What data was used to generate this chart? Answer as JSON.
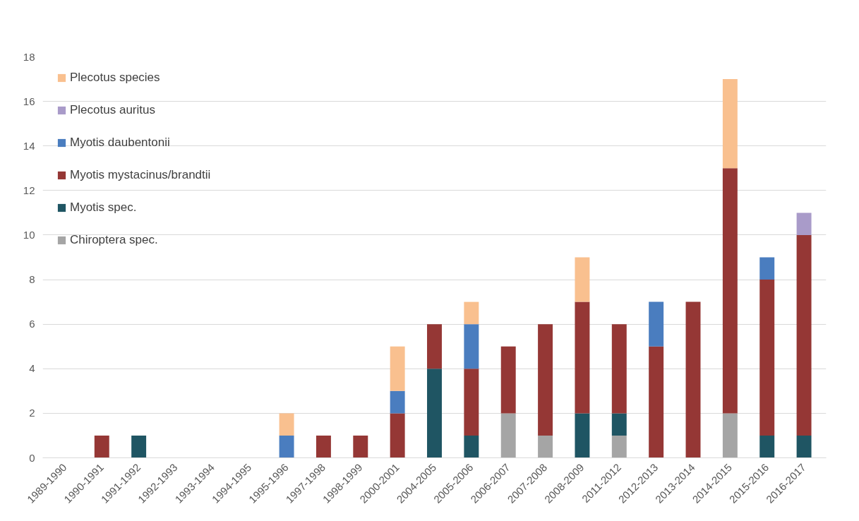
{
  "chart_data": {
    "type": "bar",
    "stacked": true,
    "categories": [
      "1989-1990",
      "1990-1991",
      "1991-1992",
      "1992-1993",
      "1993-1994",
      "1994-1995",
      "1995-1996",
      "1997-1998",
      "1998-1999",
      "2000-2001",
      "2004-2005",
      "2005-2006",
      "2006-2007",
      "2007-2008",
      "2008-2009",
      "2011-2012",
      "2012-2013",
      "2013-2014",
      "2014-2015",
      "2015-2016",
      "2016-2017"
    ],
    "series": [
      {
        "name": "Chiroptera spec.",
        "color": "#a5a5a5",
        "values": [
          null,
          null,
          null,
          null,
          null,
          null,
          null,
          null,
          null,
          null,
          null,
          null,
          2,
          1,
          null,
          1,
          null,
          null,
          2,
          null,
          null
        ]
      },
      {
        "name": "Myotis spec.",
        "color": "#1f5563",
        "values": [
          null,
          null,
          1,
          null,
          null,
          null,
          null,
          null,
          null,
          null,
          4,
          1,
          null,
          null,
          2,
          1,
          null,
          null,
          null,
          1,
          1
        ]
      },
      {
        "name": "Myotis mystacinus/brandtii",
        "color": "#953735",
        "values": [
          null,
          1,
          null,
          null,
          null,
          null,
          null,
          1,
          1,
          2,
          2,
          3,
          3,
          5,
          5,
          4,
          5,
          7,
          11,
          7,
          9
        ]
      },
      {
        "name": "Myotis daubentonii",
        "color": "#4a7dbf",
        "values": [
          null,
          null,
          null,
          null,
          null,
          null,
          1,
          null,
          null,
          1,
          null,
          2,
          null,
          null,
          null,
          null,
          2,
          null,
          null,
          1,
          null
        ]
      },
      {
        "name": "Plecotus auritus",
        "color": "#a99bc9",
        "values": [
          null,
          null,
          null,
          null,
          null,
          null,
          null,
          null,
          null,
          null,
          null,
          null,
          null,
          null,
          null,
          null,
          null,
          null,
          null,
          null,
          1
        ]
      },
      {
        "name": "Plecotus species",
        "color": "#f9c08f",
        "values": [
          null,
          null,
          null,
          null,
          null,
          null,
          1,
          null,
          null,
          2,
          null,
          1,
          null,
          null,
          2,
          null,
          null,
          null,
          4,
          null,
          null
        ]
      }
    ],
    "ylim": [
      0,
      18
    ],
    "yticks": [
      0,
      2,
      4,
      6,
      8,
      10,
      12,
      14,
      16,
      18
    ],
    "grid": "y",
    "legend": "top left"
  }
}
